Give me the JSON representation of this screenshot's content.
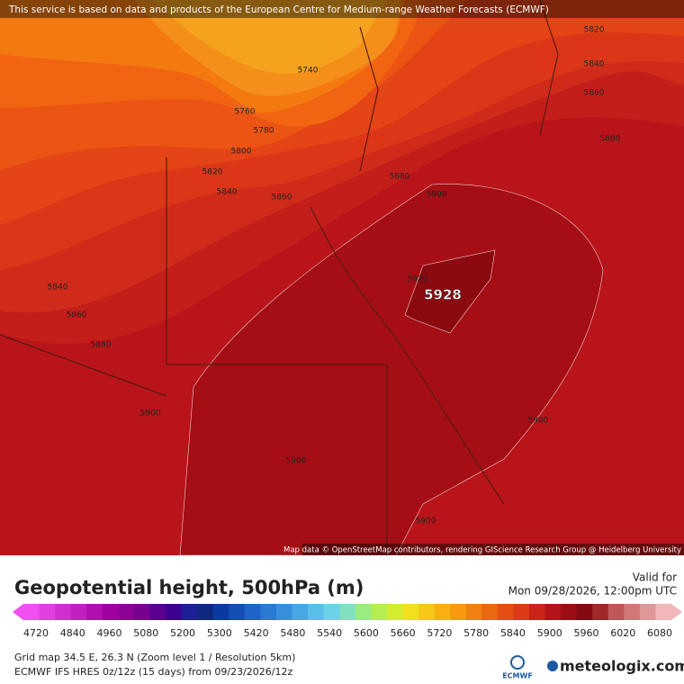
{
  "banner": "This service is based on data and products of the European Centre for Medium-range Weather Forecasts (ECMWF)",
  "map": {
    "contour_labels": [
      "5820",
      "5840",
      "5860",
      "5880",
      "5740",
      "5760",
      "5780",
      "5800",
      "5820",
      "5840",
      "5860",
      "5880",
      "5900",
      "5840",
      "5860",
      "5880",
      "5900",
      "5920",
      "5900",
      "5900",
      "5900"
    ],
    "maximum_label": "5928",
    "attribution": "Map data © OpenStreetMap contributors, rendering GIScience Research Group @ Heidelberg University"
  },
  "legend": {
    "title": "Geopotential height, 500hPa (m)",
    "valid_label": "Valid for",
    "valid_time": "Mon 09/28/2026, 12:00pm UTC",
    "ticks": [
      4720,
      4840,
      4960,
      5080,
      5200,
      5300,
      5420,
      5480,
      5540,
      5600,
      5660,
      5720,
      5780,
      5840,
      5900,
      5960,
      6020,
      6080
    ],
    "colors": [
      "#f04ef0",
      "#e040e0",
      "#d030d0",
      "#c020c0",
      "#b010b0",
      "#a000a0",
      "#8c0096",
      "#780090",
      "#5a0090",
      "#3c0090",
      "#1e1e96",
      "#102880",
      "#0a3aa0",
      "#1450b4",
      "#1e64c8",
      "#2a7ad2",
      "#3890dc",
      "#48a8e4",
      "#5abeea",
      "#6cd2e8",
      "#80e0c0",
      "#98ec80",
      "#b4ee50",
      "#d4ec30",
      "#f0e020",
      "#f8c818",
      "#f8b010",
      "#f89a10",
      "#f08010",
      "#ec6810",
      "#e45014",
      "#dc3a18",
      "#cc241a",
      "#b4141a",
      "#9c0c14",
      "#840a10",
      "#a02828",
      "#c05858",
      "#d07878",
      "#e09898",
      "#f0b8b8"
    ]
  },
  "footer": {
    "grid_info": "Grid map 34.5 E, 26.3 N (Zoom level 1 / Resolution 5km)",
    "model_info": "ECMWF IFS HRES 0z/12z (15 days) from  09/23/2026/12z",
    "ecmwf_logo": "ECMWF",
    "brand": "meteologix.com"
  }
}
